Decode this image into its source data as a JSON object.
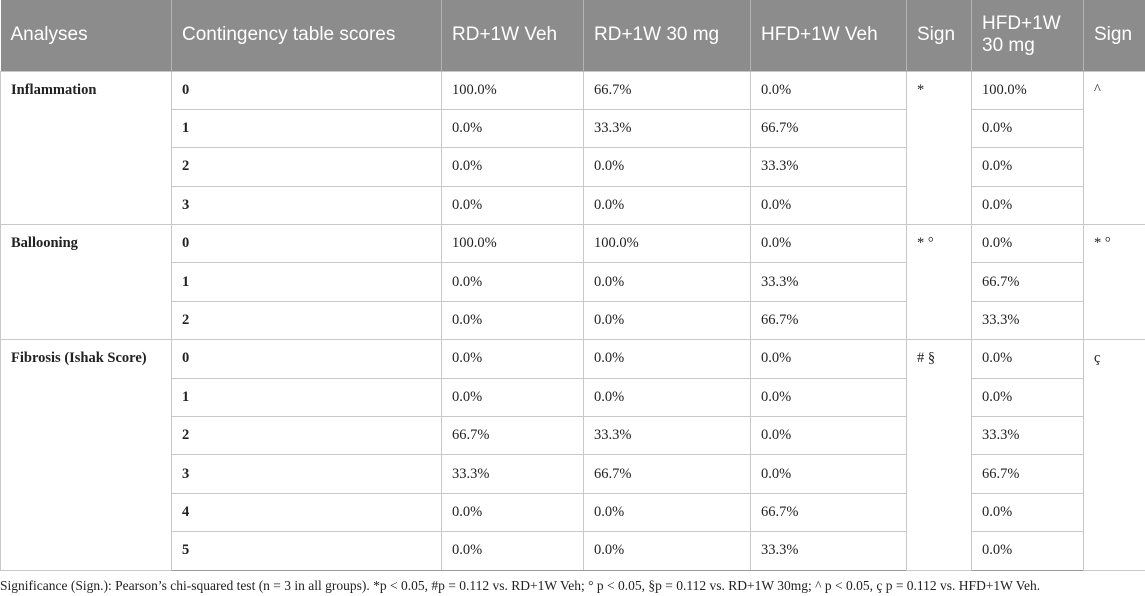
{
  "headers": [
    "Analyses",
    "Contingency table scores",
    "RD+1W Veh",
    "RD+1W 30 mg",
    "HFD+1W Veh",
    "Sign",
    "HFD+1W 30 mg",
    "Sign"
  ],
  "groups": [
    {
      "name": "Inflammation",
      "sign1": "*",
      "sign2": "^",
      "rows": [
        {
          "score": "0",
          "rd_veh": "100.0%",
          "rd_30": "66.7%",
          "hfd_veh": "0.0%",
          "hfd_30": "100.0%"
        },
        {
          "score": "1",
          "rd_veh": "0.0%",
          "rd_30": "33.3%",
          "hfd_veh": "66.7%",
          "hfd_30": "0.0%"
        },
        {
          "score": "2",
          "rd_veh": "0.0%",
          "rd_30": "0.0%",
          "hfd_veh": "33.3%",
          "hfd_30": "0.0%"
        },
        {
          "score": "3",
          "rd_veh": "0.0%",
          "rd_30": "0.0%",
          "hfd_veh": "0.0%",
          "hfd_30": "0.0%"
        }
      ]
    },
    {
      "name": "Ballooning",
      "sign1": "* °",
      "sign2": "* °",
      "rows": [
        {
          "score": "0",
          "rd_veh": "100.0%",
          "rd_30": "100.0%",
          "hfd_veh": "0.0%",
          "hfd_30": "0.0%"
        },
        {
          "score": "1",
          "rd_veh": "0.0%",
          "rd_30": "0.0%",
          "hfd_veh": "33.3%",
          "hfd_30": "66.7%"
        },
        {
          "score": "2",
          "rd_veh": "0.0%",
          "rd_30": "0.0%",
          "hfd_veh": "66.7%",
          "hfd_30": "33.3%"
        }
      ]
    },
    {
      "name": "Fibrosis (Ishak Score)",
      "sign1": "# §",
      "sign2": "ç",
      "rows": [
        {
          "score": "0",
          "rd_veh": "0.0%",
          "rd_30": "0.0%",
          "hfd_veh": "0.0%",
          "hfd_30": "0.0%"
        },
        {
          "score": "1",
          "rd_veh": "0.0%",
          "rd_30": "0.0%",
          "hfd_veh": "0.0%",
          "hfd_30": "0.0%"
        },
        {
          "score": "2",
          "rd_veh": "66.7%",
          "rd_30": "33.3%",
          "hfd_veh": "0.0%",
          "hfd_30": "33.3%"
        },
        {
          "score": "3",
          "rd_veh": "33.3%",
          "rd_30": "66.7%",
          "hfd_veh": "0.0%",
          "hfd_30": "66.7%"
        },
        {
          "score": "4",
          "rd_veh": "0.0%",
          "rd_30": "0.0%",
          "hfd_veh": "66.7%",
          "hfd_30": "0.0%"
        },
        {
          "score": "5",
          "rd_veh": "0.0%",
          "rd_30": "0.0%",
          "hfd_veh": "33.3%",
          "hfd_30": "0.0%"
        }
      ]
    }
  ],
  "footnote": "Significance (Sign.): Pearson’s chi-squared test (n = 3 in all groups). *p < 0.05, #p = 0.112 vs. RD+1W Veh; ° p < 0.05, §p = 0.112 vs. RD+1W 30mg; ^ p < 0.05, ç p = 0.112 vs. HFD+1W Veh."
}
